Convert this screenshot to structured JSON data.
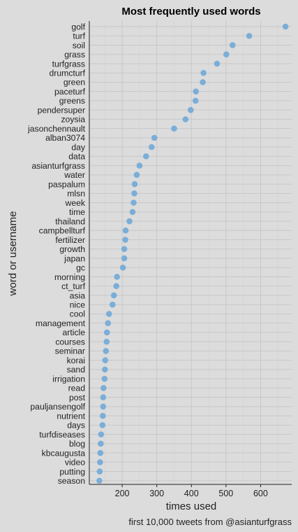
{
  "chart_data": {
    "type": "scatter",
    "title": "Most frequently used words",
    "xlabel": "times used",
    "ylabel": "word or username",
    "caption": "first 10,000 tweets from @asianturfgrass",
    "xlim": [
      105,
      690
    ],
    "x_ticks": [
      200,
      300,
      400,
      500,
      600
    ],
    "grid": true,
    "point_color": "#7aaed8",
    "background": "#dcdcdc",
    "categories": [
      "golf",
      "turf",
      "soil",
      "grass",
      "turfgrass",
      "drumcturf",
      "green",
      "paceturf",
      "greens",
      "pendersuper",
      "zoysia",
      "jasonchennault",
      "alban3074",
      "day",
      "data",
      "asianturfgrass",
      "water",
      "paspalum",
      "mlsn",
      "week",
      "time",
      "thailand",
      "campbellturf",
      "fertilizer",
      "growth",
      "japan",
      "gc",
      "morning",
      "ct_turf",
      "asia",
      "nice",
      "cool",
      "management",
      "article",
      "courses",
      "seminar",
      "korai",
      "sand",
      "irrigation",
      "read",
      "post",
      "pauljansengolf",
      "nutrient",
      "days",
      "turfdiseases",
      "blog",
      "kbcaugusta",
      "video",
      "putting",
      "season"
    ],
    "values": [
      672,
      567,
      519,
      501,
      474,
      435,
      433,
      413,
      412,
      398,
      383,
      350,
      293,
      285,
      269,
      250,
      242,
      236,
      235,
      233,
      230,
      221,
      210,
      209,
      206,
      206,
      202,
      185,
      183,
      176,
      172,
      162,
      159,
      156,
      155,
      153,
      151,
      150,
      149,
      146,
      145,
      145,
      144,
      143,
      139,
      138,
      137,
      136,
      135,
      134
    ]
  }
}
